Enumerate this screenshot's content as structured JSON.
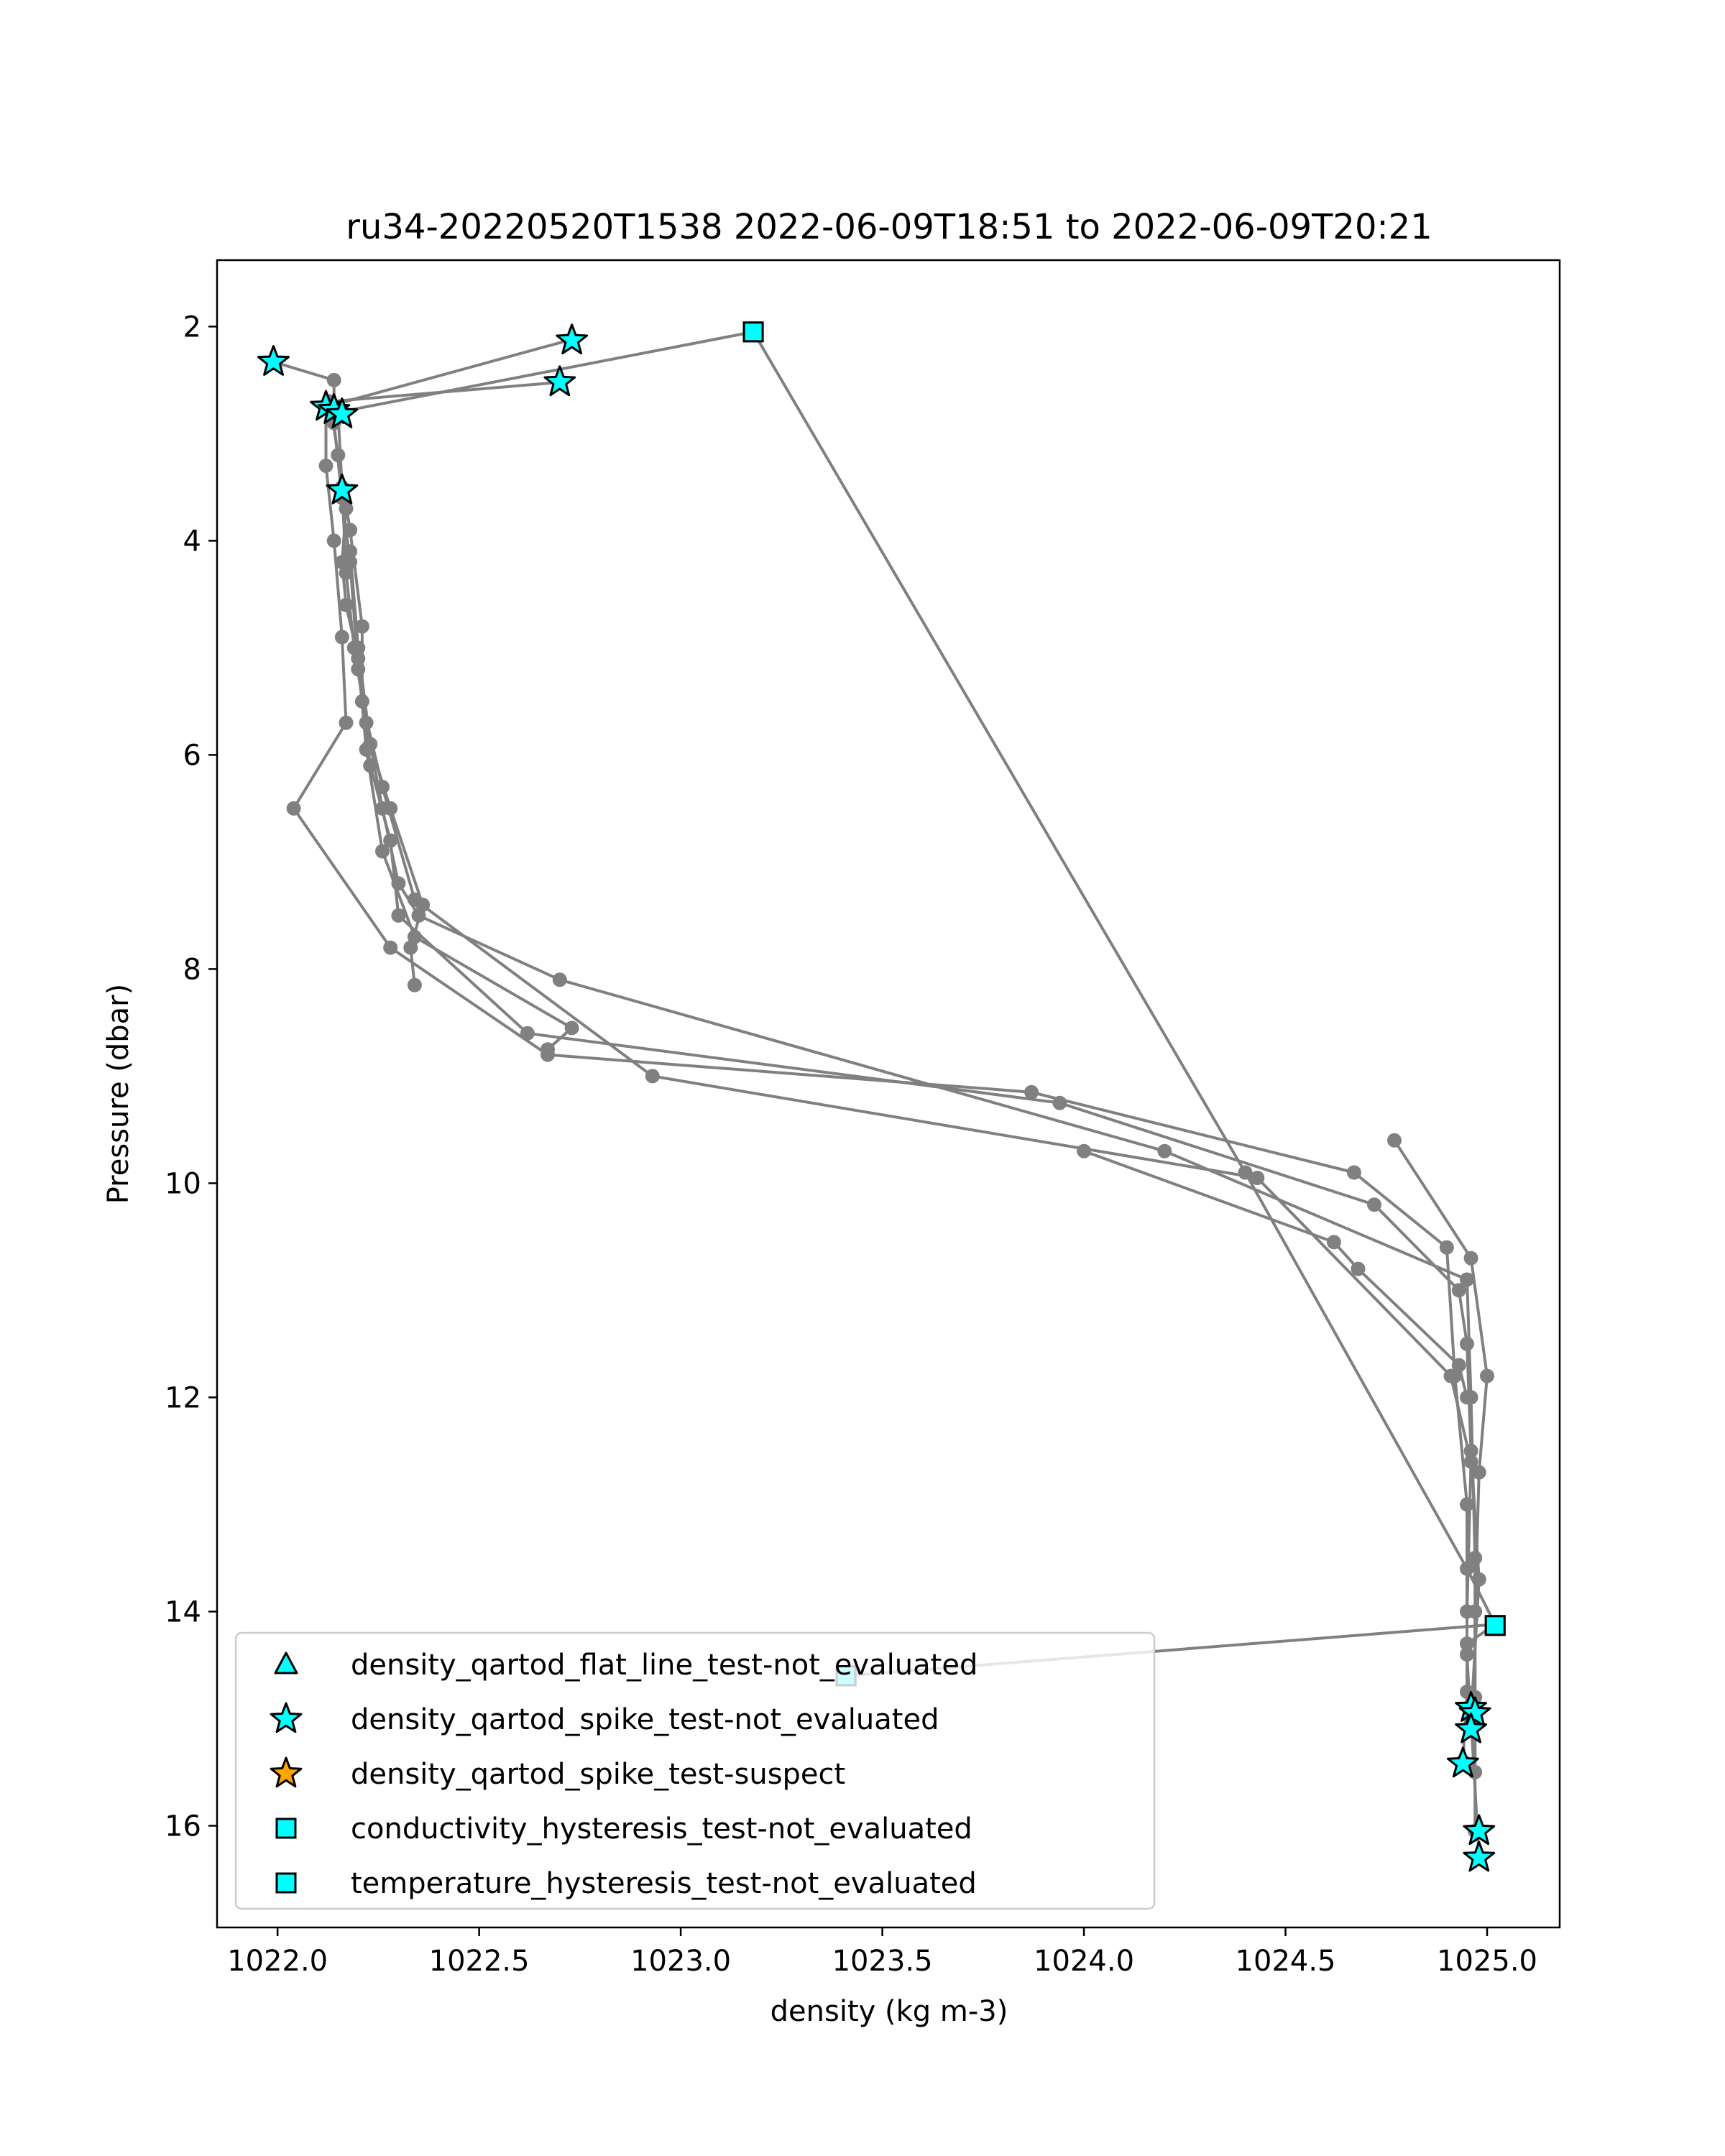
{
  "chart_data": {
    "type": "scatter",
    "title": "ru34-20220520T1538 2022-06-09T18:51 to 2022-06-09T20:21",
    "xlabel": "density (kg m-3)",
    "ylabel": "Pressure (dbar)",
    "xlim": [
      1021.85,
      1025.18
    ],
    "ylim": [
      16.95,
      1.38
    ],
    "y_inverted": true,
    "x_ticks": [
      {
        "value": 1022.0,
        "label": "1022.0"
      },
      {
        "value": 1022.5,
        "label": "1022.5"
      },
      {
        "value": 1023.0,
        "label": "1023.0"
      },
      {
        "value": 1023.5,
        "label": "1023.5"
      },
      {
        "value": 1024.0,
        "label": "1024.0"
      },
      {
        "value": 1024.5,
        "label": "1024.5"
      },
      {
        "value": 1025.0,
        "label": "1025.0"
      }
    ],
    "y_ticks": [
      {
        "value": 2,
        "label": "2"
      },
      {
        "value": 4,
        "label": "4"
      },
      {
        "value": 6,
        "label": "6"
      },
      {
        "value": 8,
        "label": "8"
      },
      {
        "value": 10,
        "label": "10"
      },
      {
        "value": 12,
        "label": "12"
      },
      {
        "value": 14,
        "label": "14"
      },
      {
        "value": 16,
        "label": "16"
      }
    ],
    "grid": false,
    "legend_position": "lower-left",
    "profile_color": "#808080",
    "profiles": [
      {
        "points": [
          [
            1023.18,
            2.05
          ],
          [
            1022.15,
            2.8
          ],
          [
            1022.16,
            3.5
          ],
          [
            1022.17,
            4.3
          ],
          [
            1022.19,
            5.0
          ],
          [
            1022.22,
            5.7
          ],
          [
            1022.26,
            6.5
          ],
          [
            1022.3,
            7.2
          ],
          [
            1022.35,
            7.5
          ],
          [
            1022.7,
            8.1
          ],
          [
            1024.2,
            9.7
          ],
          [
            1024.95,
            10.9
          ],
          [
            1024.96,
            12.0
          ],
          [
            1024.97,
            13.5
          ],
          [
            1024.97,
            14.8
          ],
          [
            1024.97,
            16.05
          ]
        ]
      },
      {
        "points": [
          [
            1022.73,
            2.12
          ],
          [
            1022.12,
            2.75
          ],
          [
            1022.12,
            3.3
          ],
          [
            1022.14,
            4.0
          ],
          [
            1022.16,
            4.9
          ],
          [
            1022.17,
            5.7
          ],
          [
            1022.04,
            6.5
          ],
          [
            1022.28,
            7.8
          ],
          [
            1022.67,
            8.8
          ],
          [
            1023.87,
            9.15
          ],
          [
            1024.67,
            9.9
          ],
          [
            1024.9,
            10.6
          ],
          [
            1024.92,
            11.8
          ],
          [
            1024.95,
            13.0
          ],
          [
            1024.95,
            14.4
          ],
          [
            1024.96,
            15.1
          ]
        ]
      },
      {
        "points": [
          [
            1021.99,
            2.33
          ],
          [
            1022.14,
            2.5
          ],
          [
            1022.14,
            2.9
          ],
          [
            1022.16,
            3.6
          ],
          [
            1022.18,
            4.2
          ],
          [
            1022.2,
            5.2
          ],
          [
            1022.23,
            6.1
          ],
          [
            1022.28,
            6.8
          ],
          [
            1022.3,
            7.5
          ],
          [
            1022.62,
            8.6
          ],
          [
            1023.94,
            9.25
          ],
          [
            1024.72,
            10.2
          ],
          [
            1024.93,
            11.0
          ],
          [
            1024.95,
            11.5
          ],
          [
            1024.96,
            12.5
          ],
          [
            1024.98,
            13.7
          ],
          [
            1024.96,
            15.0
          ],
          [
            1024.98,
            16.3
          ]
        ]
      },
      {
        "points": [
          [
            1022.7,
            2.52
          ],
          [
            1022.13,
            2.7
          ],
          [
            1022.15,
            3.2
          ],
          [
            1022.18,
            3.9
          ],
          [
            1022.21,
            4.8
          ],
          [
            1022.21,
            5.5
          ],
          [
            1022.26,
            6.3
          ],
          [
            1022.34,
            7.35
          ],
          [
            1022.93,
            9.0
          ],
          [
            1024.43,
            9.95
          ],
          [
            1024.91,
            11.8
          ],
          [
            1024.96,
            12.6
          ],
          [
            1024.95,
            14.0
          ],
          [
            1024.95,
            14.75
          ],
          [
            1024.94,
            15.4
          ]
        ]
      },
      {
        "points": [
          [
            1024.77,
            9.6
          ],
          [
            1024.96,
            10.7
          ],
          [
            1025.0,
            11.8
          ],
          [
            1024.98,
            12.7
          ],
          [
            1024.97,
            14.0
          ],
          [
            1024.97,
            15.5
          ]
        ]
      },
      {
        "points": [
          [
            1022.67,
            8.75
          ],
          [
            1022.73,
            8.55
          ],
          [
            1022.34,
            7.7
          ],
          [
            1022.26,
            6.9
          ],
          [
            1022.22,
            5.95
          ],
          [
            1022.2,
            5.1
          ],
          [
            1022.17,
            4.6
          ],
          [
            1022.16,
            4.2
          ],
          [
            1022.17,
            3.7
          ]
        ]
      },
      {
        "points": [
          [
            1022.34,
            8.15
          ],
          [
            1022.33,
            7.8
          ],
          [
            1022.36,
            7.4
          ],
          [
            1022.28,
            6.5
          ],
          [
            1022.23,
            5.9
          ],
          [
            1022.2,
            5.0
          ],
          [
            1022.18,
            4.1
          ]
        ]
      },
      {
        "points": [
          [
            1023.18,
            2.05
          ],
          [
            1024.4,
            9.9
          ],
          [
            1024.95,
            13.6
          ],
          [
            1025.02,
            14.12
          ]
        ]
      },
      {
        "points": [
          [
            1023.41,
            14.6
          ],
          [
            1025.02,
            14.12
          ],
          [
            1024.95,
            14.3
          ]
        ]
      },
      {
        "points": [
          [
            1024.0,
            9.7
          ],
          [
            1024.62,
            10.55
          ],
          [
            1024.68,
            10.8
          ],
          [
            1024.93,
            11.7
          ],
          [
            1024.95,
            12.0
          ]
        ]
      }
    ],
    "marker_series": [
      {
        "name": "density_qartod_flat_line_test-not_evaluated",
        "marker": "triangle",
        "color": "#00FFFF",
        "points": []
      },
      {
        "name": "density_qartod_spike_test-not_evaluated",
        "marker": "star",
        "color": "#00FFFF",
        "points": [
          [
            1022.73,
            2.13
          ],
          [
            1022.7,
            2.52
          ],
          [
            1021.99,
            2.33
          ],
          [
            1022.12,
            2.75
          ],
          [
            1022.14,
            2.78
          ],
          [
            1022.16,
            2.82
          ],
          [
            1022.16,
            3.53
          ],
          [
            1024.96,
            14.9
          ],
          [
            1024.97,
            14.95
          ],
          [
            1024.96,
            15.1
          ],
          [
            1024.94,
            15.42
          ],
          [
            1024.98,
            16.05
          ],
          [
            1024.98,
            16.3
          ]
        ]
      },
      {
        "name": "density_qartod_spike_test-suspect",
        "marker": "star",
        "color": "#FFA500",
        "points": []
      },
      {
        "name": "conductivity_hysteresis_test-not_evaluated",
        "marker": "square",
        "color": "#00FFFF",
        "points": [
          [
            1023.18,
            2.05
          ],
          [
            1025.02,
            14.13
          ],
          [
            1023.41,
            14.6
          ]
        ]
      },
      {
        "name": "temperature_hysteresis_test-not_evaluated",
        "marker": "square",
        "color": "#00FFFF",
        "points": [
          [
            1023.18,
            2.05
          ],
          [
            1025.02,
            14.13
          ],
          [
            1023.41,
            14.6
          ]
        ]
      }
    ]
  }
}
